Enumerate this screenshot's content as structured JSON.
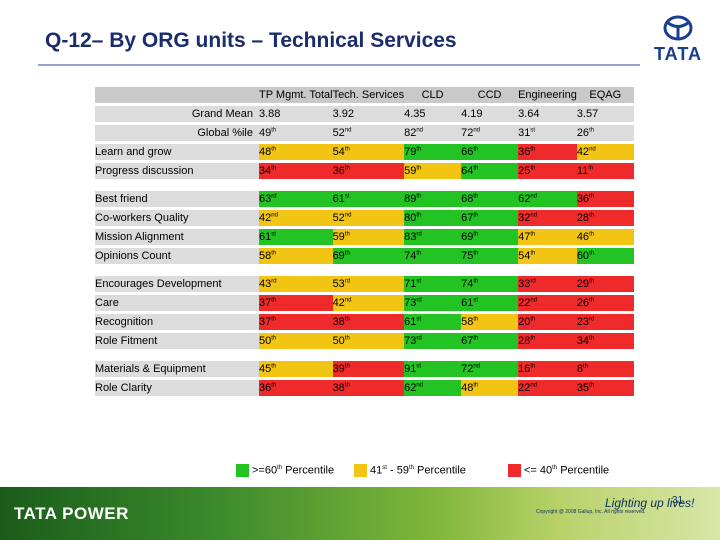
{
  "title": "Q-12– By ORG units – Technical Services",
  "logo_text": "TATA",
  "headers": [
    "TP Mgmt. Total",
    "Tech. Services",
    "CLD",
    "CCD",
    "Engineering",
    "EQAG"
  ],
  "colors": {
    "green": "#22c322",
    "yellow": "#f2c414",
    "red": "#ee2a2a",
    "grey": "#dcdcdc"
  },
  "summary_rows": [
    {
      "label": "Grand Mean",
      "cells": [
        {
          "v": "3.88"
        },
        {
          "v": "3.92"
        },
        {
          "v": "4.35"
        },
        {
          "v": "4.19"
        },
        {
          "v": "3.64"
        },
        {
          "v": "3.57"
        }
      ]
    },
    {
      "label": "Global %ile",
      "cells": [
        {
          "v": "49",
          "s": "th"
        },
        {
          "v": "52",
          "s": "nd"
        },
        {
          "v": "82",
          "s": "nd"
        },
        {
          "v": "72",
          "s": "nd"
        },
        {
          "v": "31",
          "s": "st"
        },
        {
          "v": "26",
          "s": "th"
        }
      ]
    }
  ],
  "groups": [
    [
      {
        "label": "Learn and grow",
        "cells": [
          {
            "v": "48",
            "s": "th",
            "c": "y"
          },
          {
            "v": "54",
            "s": "th",
            "c": "y"
          },
          {
            "v": "79",
            "s": "th",
            "c": "g"
          },
          {
            "v": "66",
            "s": "th",
            "c": "g"
          },
          {
            "v": "36",
            "s": "th",
            "c": "r"
          },
          {
            "v": "42",
            "s": "nd",
            "c": "y"
          }
        ]
      },
      {
        "label": "Progress discussion",
        "cells": [
          {
            "v": "34",
            "s": "th",
            "c": "r"
          },
          {
            "v": "36",
            "s": "th",
            "c": "r"
          },
          {
            "v": "59",
            "s": "th",
            "c": "y"
          },
          {
            "v": "64",
            "s": "th",
            "c": "g"
          },
          {
            "v": "25",
            "s": "th",
            "c": "r"
          },
          {
            "v": "11",
            "s": "th",
            "c": "r"
          }
        ]
      }
    ],
    [
      {
        "label": "Best friend",
        "cells": [
          {
            "v": "63",
            "s": "rd",
            "c": "g"
          },
          {
            "v": "61",
            "s": "st",
            "c": "g"
          },
          {
            "v": "89",
            "s": "th",
            "c": "g"
          },
          {
            "v": "68",
            "s": "th",
            "c": "g"
          },
          {
            "v": "62",
            "s": "nd",
            "c": "g"
          },
          {
            "v": "36",
            "s": "th",
            "c": "r"
          }
        ]
      },
      {
        "label": "Co-workers Quality",
        "cells": [
          {
            "v": "42",
            "s": "nd",
            "c": "y"
          },
          {
            "v": "52",
            "s": "nd",
            "c": "y"
          },
          {
            "v": "80",
            "s": "th",
            "c": "g"
          },
          {
            "v": "67",
            "s": "th",
            "c": "g"
          },
          {
            "v": "32",
            "s": "nd",
            "c": "r"
          },
          {
            "v": "28",
            "s": "th",
            "c": "r"
          }
        ]
      },
      {
        "label": "Mission Alignment",
        "cells": [
          {
            "v": "61",
            "s": "st",
            "c": "g"
          },
          {
            "v": "59",
            "s": "th",
            "c": "y"
          },
          {
            "v": "83",
            "s": "rd",
            "c": "g"
          },
          {
            "v": "69",
            "s": "th",
            "c": "g"
          },
          {
            "v": "47",
            "s": "th",
            "c": "y"
          },
          {
            "v": "46",
            "s": "th",
            "c": "y"
          }
        ]
      },
      {
        "label": "Opinions Count",
        "cells": [
          {
            "v": "58",
            "s": "th",
            "c": "y"
          },
          {
            "v": "69",
            "s": "th",
            "c": "g"
          },
          {
            "v": "74",
            "s": "th",
            "c": "g"
          },
          {
            "v": "75",
            "s": "th",
            "c": "g"
          },
          {
            "v": "54",
            "s": "th",
            "c": "y"
          },
          {
            "v": "60",
            "s": "th",
            "c": "g"
          }
        ]
      }
    ],
    [
      {
        "label": "Encourages Development",
        "cells": [
          {
            "v": "43",
            "s": "rd",
            "c": "y"
          },
          {
            "v": "53",
            "s": "rd",
            "c": "y"
          },
          {
            "v": "71",
            "s": "st",
            "c": "g"
          },
          {
            "v": "74",
            "s": "th",
            "c": "g"
          },
          {
            "v": "33",
            "s": "rd",
            "c": "r"
          },
          {
            "v": "29",
            "s": "th",
            "c": "r"
          }
        ]
      },
      {
        "label": "Care",
        "cells": [
          {
            "v": "37",
            "s": "th",
            "c": "r"
          },
          {
            "v": "42",
            "s": "nd",
            "c": "y"
          },
          {
            "v": "73",
            "s": "rd",
            "c": "g"
          },
          {
            "v": "61",
            "s": "st",
            "c": "g"
          },
          {
            "v": "22",
            "s": "nd",
            "c": "r"
          },
          {
            "v": "26",
            "s": "th",
            "c": "r"
          }
        ]
      },
      {
        "label": "Recognition",
        "cells": [
          {
            "v": "37",
            "s": "th",
            "c": "r"
          },
          {
            "v": "38",
            "s": "th",
            "c": "r"
          },
          {
            "v": "61",
            "s": "st",
            "c": "g"
          },
          {
            "v": "58",
            "s": "th",
            "c": "y"
          },
          {
            "v": "20",
            "s": "th",
            "c": "r"
          },
          {
            "v": "23",
            "s": "rd",
            "c": "r"
          }
        ]
      },
      {
        "label": "Role Fitment",
        "cells": [
          {
            "v": "50",
            "s": "th",
            "c": "y"
          },
          {
            "v": "50",
            "s": "th",
            "c": "y"
          },
          {
            "v": "73",
            "s": "rd",
            "c": "g"
          },
          {
            "v": "67",
            "s": "th",
            "c": "g"
          },
          {
            "v": "28",
            "s": "th",
            "c": "r"
          },
          {
            "v": "34",
            "s": "th",
            "c": "r"
          }
        ]
      }
    ],
    [
      {
        "label": "Materials & Equipment",
        "cells": [
          {
            "v": "45",
            "s": "th",
            "c": "y"
          },
          {
            "v": "39",
            "s": "th",
            "c": "r"
          },
          {
            "v": "91",
            "s": "st",
            "c": "g"
          },
          {
            "v": "72",
            "s": "nd",
            "c": "g"
          },
          {
            "v": "16",
            "s": "th",
            "c": "r"
          },
          {
            "v": "8",
            "s": "th",
            "c": "r"
          }
        ]
      },
      {
        "label": "Role Clarity",
        "cells": [
          {
            "v": "36",
            "s": "th",
            "c": "r"
          },
          {
            "v": "38",
            "s": "th",
            "c": "r"
          },
          {
            "v": "62",
            "s": "nd",
            "c": "g"
          },
          {
            "v": "48",
            "s": "th",
            "c": "y"
          },
          {
            "v": "22",
            "s": "nd",
            "c": "r"
          },
          {
            "v": "35",
            "s": "th",
            "c": "r"
          }
        ]
      }
    ]
  ],
  "legend": [
    {
      "color": "g",
      "pre": ">=60",
      "sup": "th",
      "post": " Percentile"
    },
    {
      "color": "y",
      "pre": "41",
      "sup": "st",
      "post": " - 59",
      "sup2": "th",
      "post2": " Percentile"
    },
    {
      "color": "r",
      "pre": "<= 40",
      "sup": "th",
      "post": " Percentile"
    }
  ],
  "footer": {
    "brand": "TATA POWER",
    "slogan": "Lighting up lives!",
    "page": "31",
    "copyright": "Copyright @ 2008 Gallup, Inc. All rights reserved."
  }
}
